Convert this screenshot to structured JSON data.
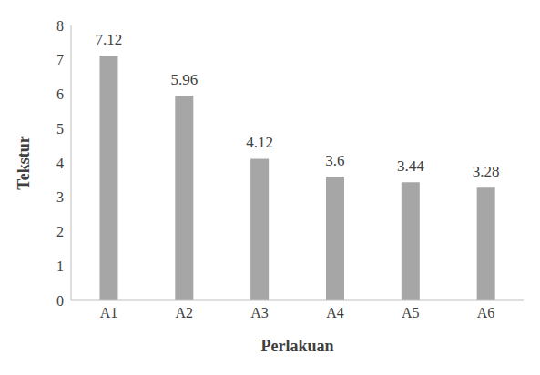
{
  "chart_data": {
    "type": "bar",
    "categories": [
      "A1",
      "A2",
      "A3",
      "A4",
      "A5",
      "A6"
    ],
    "values": [
      7.12,
      5.96,
      4.12,
      3.6,
      3.44,
      3.28
    ],
    "color": "#a6a6a6",
    "xlabel": "Perlakuan",
    "ylabel": "Tekstur",
    "ylim": [
      0,
      8
    ],
    "yticks": [
      0,
      1,
      2,
      3,
      4,
      5,
      6,
      7,
      8
    ],
    "grid": false,
    "data_labels": true
  }
}
